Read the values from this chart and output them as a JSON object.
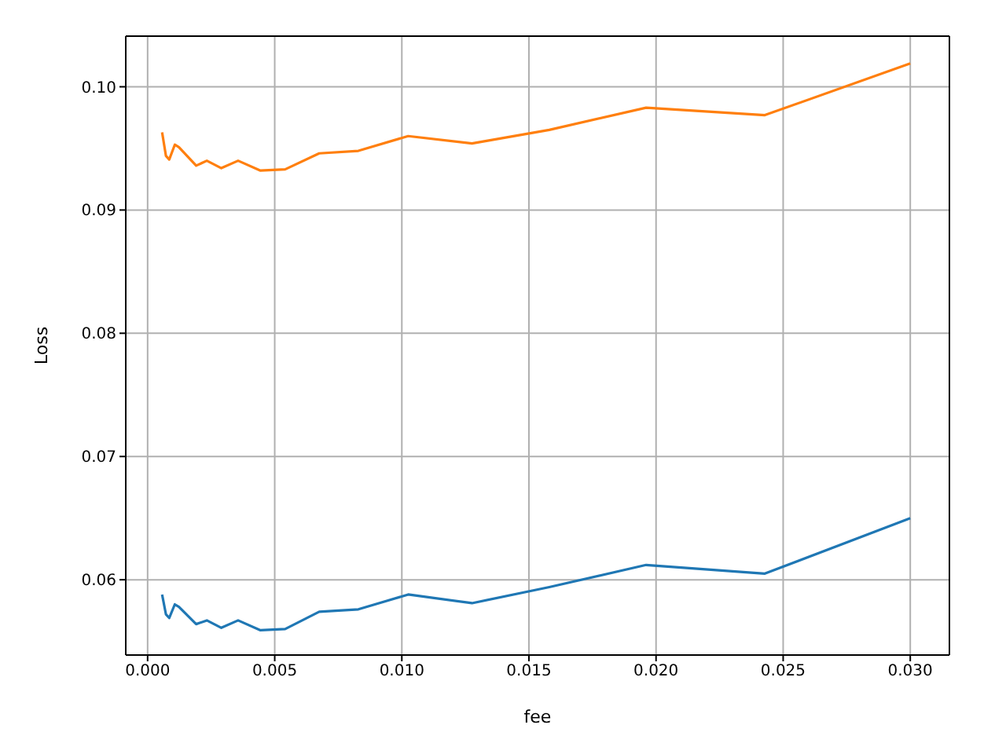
{
  "chart_data": {
    "type": "line",
    "xlabel": "fee",
    "ylabel": "Loss",
    "x": [
      0.00057,
      0.00072,
      0.00085,
      0.00107,
      0.00123,
      0.00191,
      0.00233,
      0.0029,
      0.00356,
      0.00444,
      0.00541,
      0.00675,
      0.00829,
      0.01025,
      0.01276,
      0.0158,
      0.01961,
      0.02428,
      0.03
    ],
    "series": [
      {
        "color": "#1f77b4",
        "values": [
          0.0588,
          0.0572,
          0.0569,
          0.058,
          0.0578,
          0.0564,
          0.0567,
          0.0561,
          0.0567,
          0.0559,
          0.056,
          0.0574,
          0.0576,
          0.0588,
          0.0581,
          0.0594,
          0.0612,
          0.0605,
          0.065
        ]
      },
      {
        "color": "#ff7f0e",
        "values": [
          0.0963,
          0.0944,
          0.0941,
          0.0953,
          0.0951,
          0.0936,
          0.094,
          0.0934,
          0.094,
          0.0932,
          0.0933,
          0.0946,
          0.0948,
          0.096,
          0.0954,
          0.0965,
          0.0983,
          0.0977,
          0.1019
        ]
      }
    ],
    "xlim": [
      -0.00086,
      0.03154
    ],
    "ylim": [
      0.05389,
      0.10411
    ],
    "xticks": [
      {
        "value": 0,
        "label": "0.000"
      },
      {
        "value": 0.005,
        "label": "0.005"
      },
      {
        "value": 0.01,
        "label": "0.010"
      },
      {
        "value": 0.015,
        "label": "0.015"
      },
      {
        "value": 0.02,
        "label": "0.020"
      },
      {
        "value": 0.025,
        "label": "0.025"
      },
      {
        "value": 0.03,
        "label": "0.030"
      }
    ],
    "yticks": [
      {
        "value": 0.06,
        "label": "0.06"
      },
      {
        "value": 0.07,
        "label": "0.07"
      },
      {
        "value": 0.08,
        "label": "0.08"
      },
      {
        "value": 0.09,
        "label": "0.09"
      },
      {
        "value": 0.1,
        "label": "0.10"
      }
    ],
    "grid": true,
    "marker": "none",
    "line_style": "solid"
  }
}
